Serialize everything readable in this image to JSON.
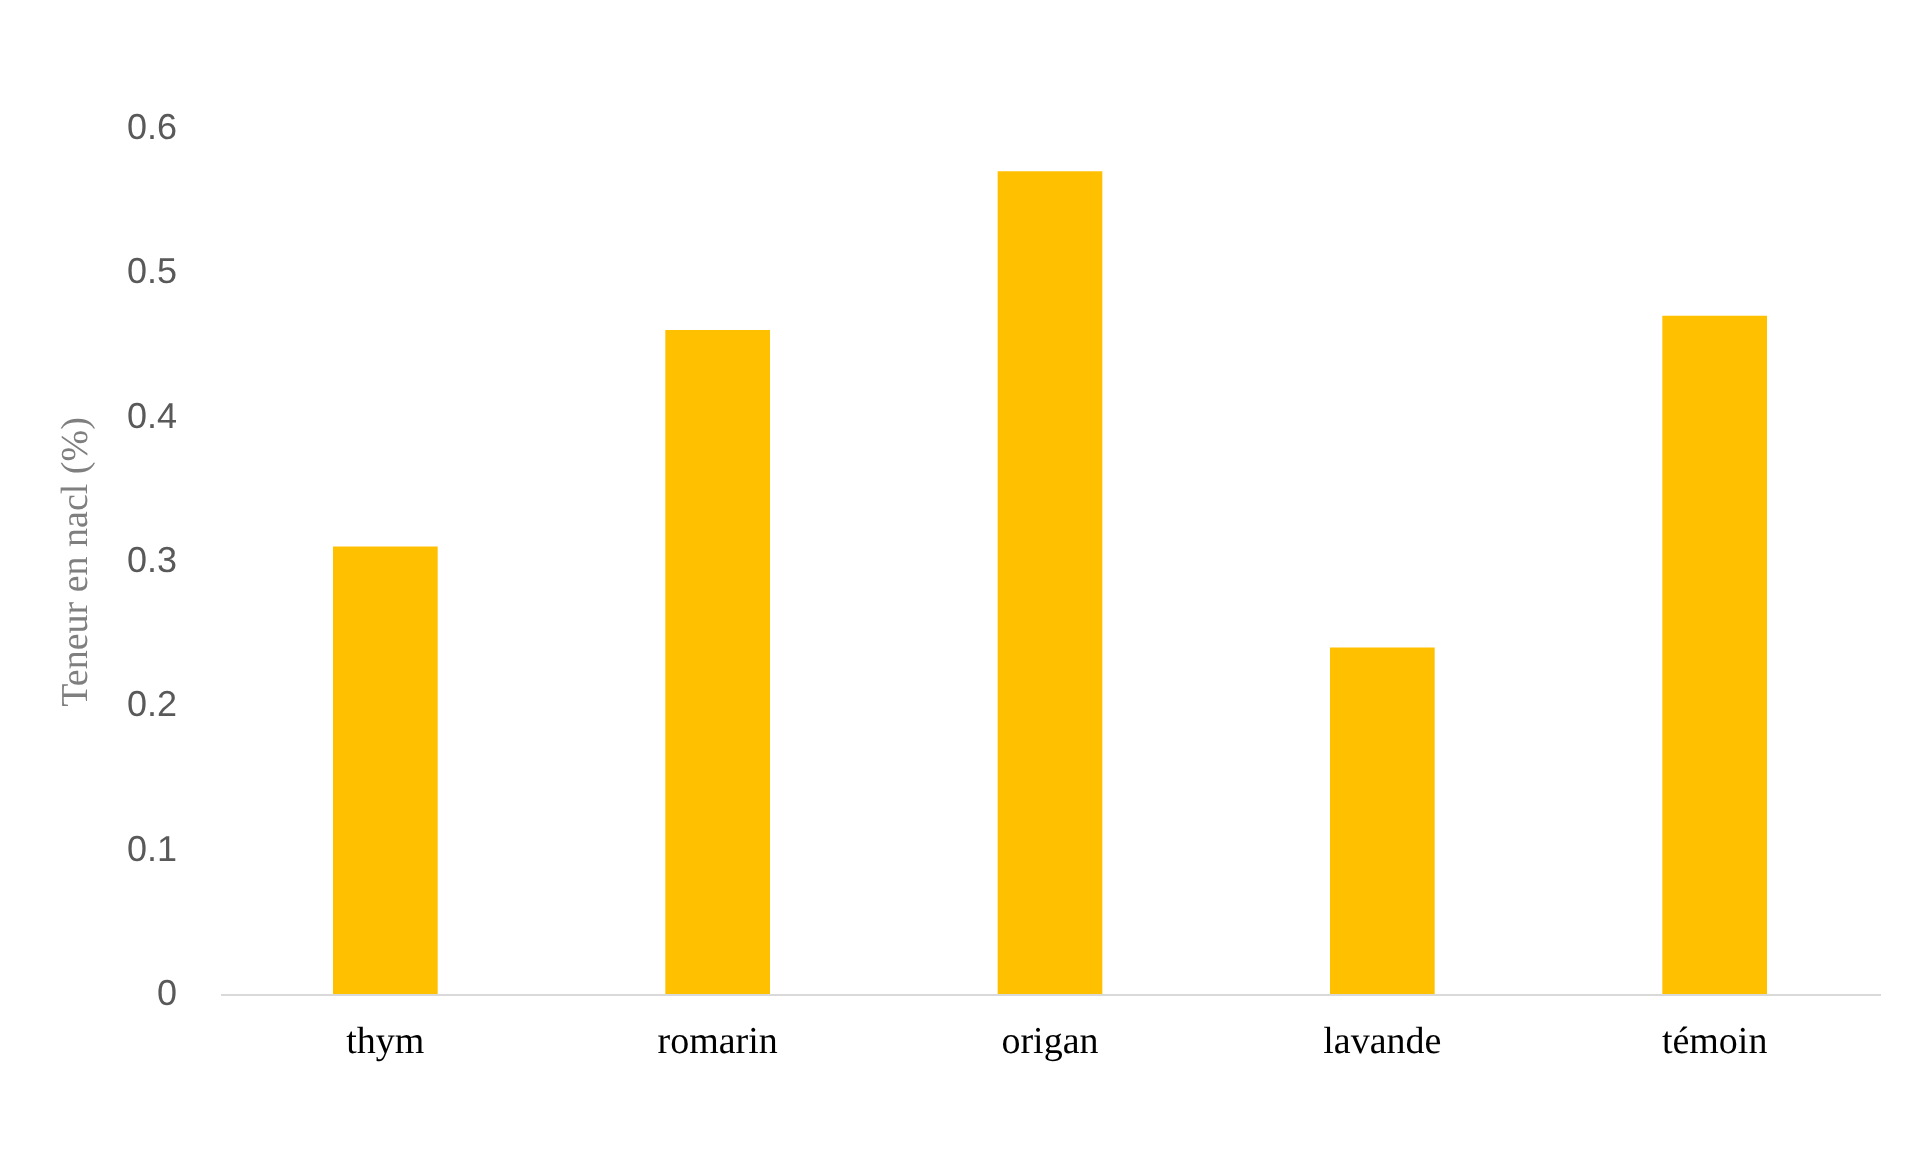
{
  "chart_data": {
    "type": "bar",
    "ylabel": "Teneur en nacl (%)",
    "categories": [
      "thym",
      "romarin",
      "origan",
      "lavande",
      "témoin"
    ],
    "values": [
      0.31,
      0.46,
      0.57,
      0.24,
      0.47
    ],
    "color": "#ffc000",
    "ylim": [
      0,
      0.6
    ],
    "yticks": [
      0,
      0.1,
      0.2,
      0.3,
      0.4,
      0.5,
      0.6
    ],
    "grid": false,
    "legend": false
  }
}
